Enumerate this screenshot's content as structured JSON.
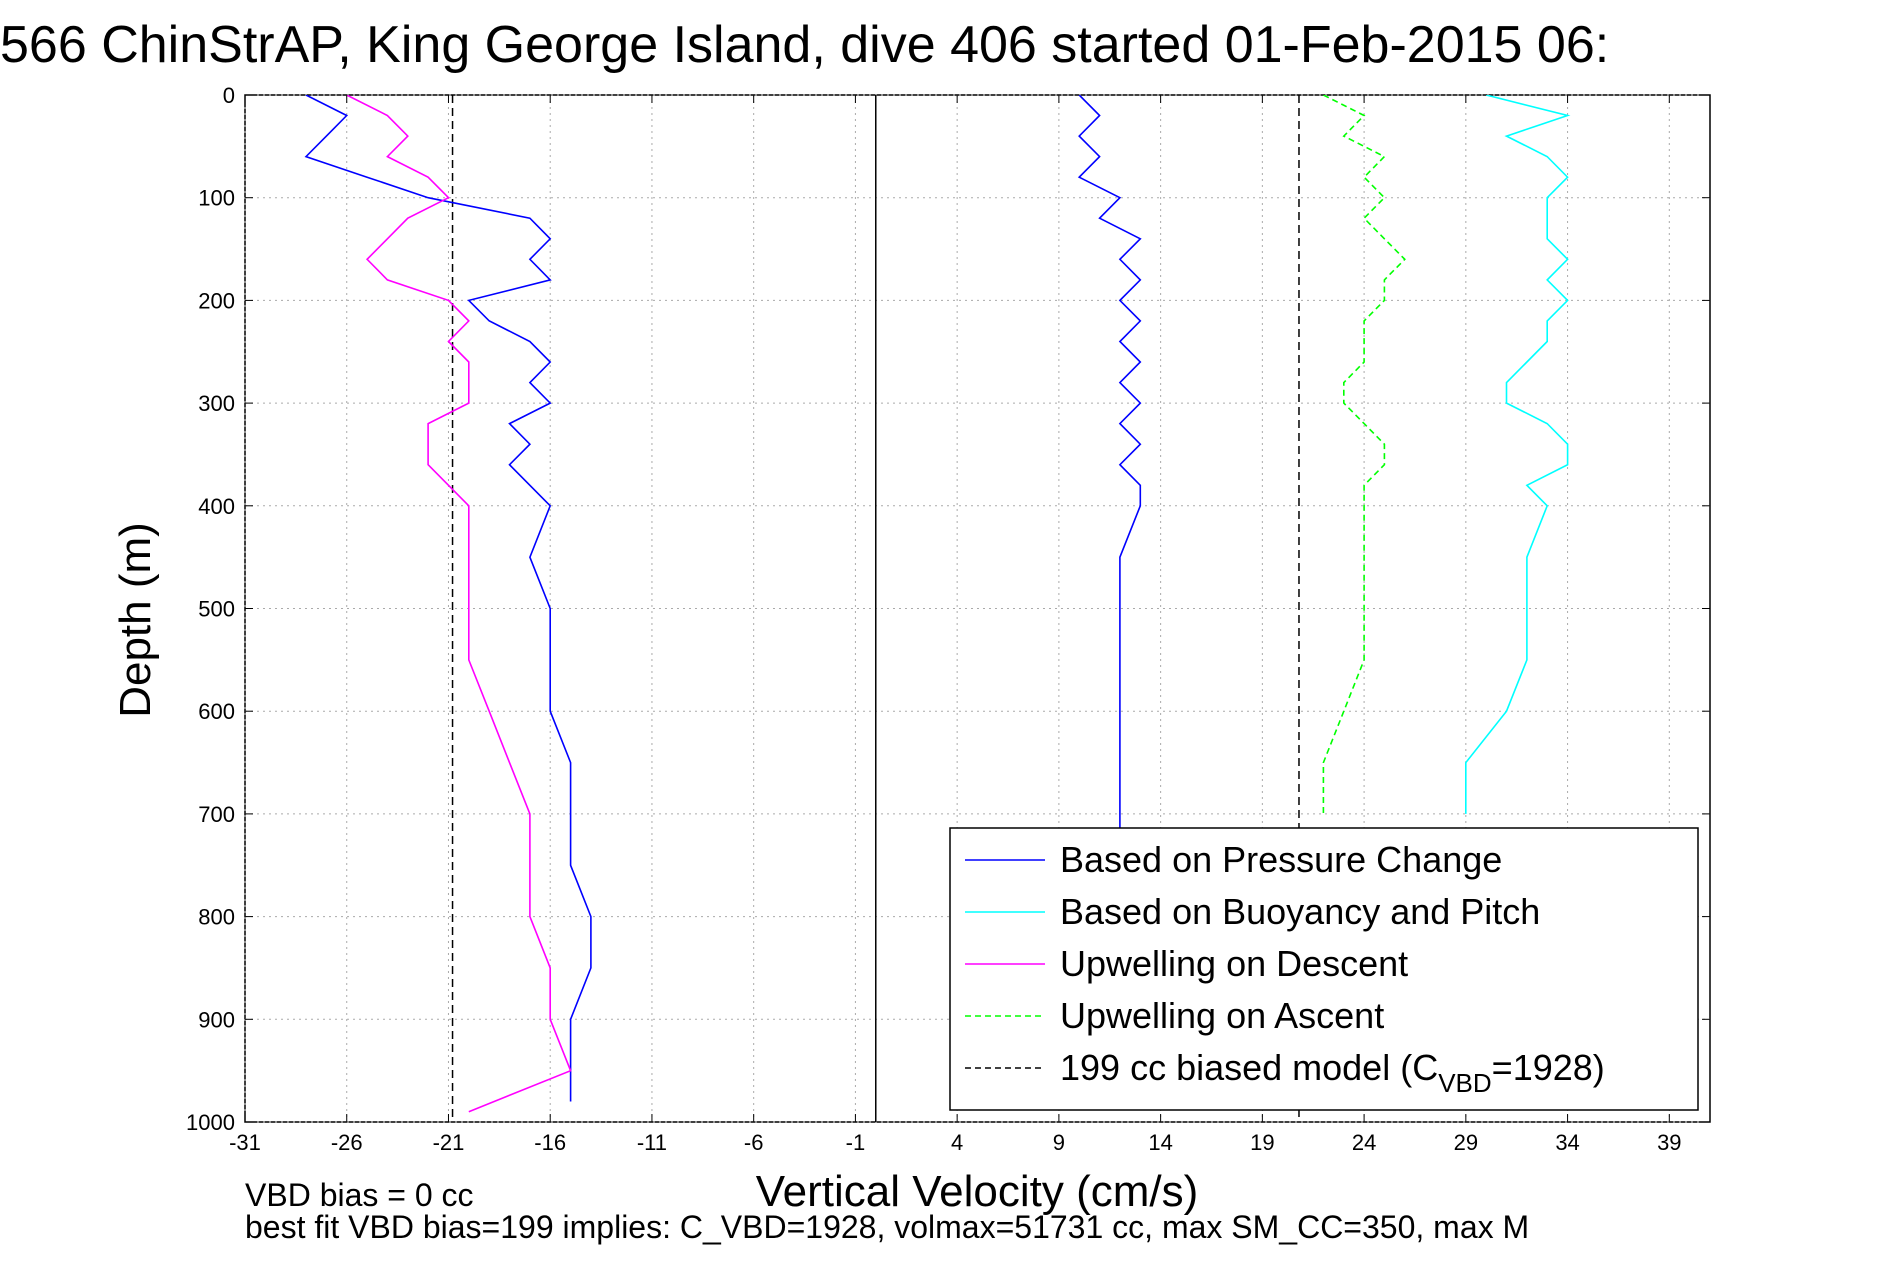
{
  "chart_data": {
    "type": "line",
    "title": "566 ChinStrAP, King George Island, dive 406 started 01-Feb-2015 06:",
    "xlabel": "Vertical Velocity (cm/s)",
    "ylabel": "Depth (m)",
    "xlim": [
      -31,
      41
    ],
    "ylim": [
      1000,
      0
    ],
    "y_inverted": true,
    "grid": true,
    "x_ticks": [
      -31,
      -26,
      -21,
      -16,
      -11,
      -6,
      -1,
      4,
      9,
      14,
      19,
      24,
      29,
      34,
      39
    ],
    "y_ticks": [
      0,
      100,
      200,
      300,
      400,
      500,
      600,
      700,
      800,
      900,
      1000
    ],
    "vertical_lines": [
      {
        "x": 0,
        "style": "solid",
        "color": "#000000"
      },
      {
        "x": -20.8,
        "style": "dashed",
        "color": "#000000"
      },
      {
        "x": 20.8,
        "style": "dashed",
        "color": "#000000"
      }
    ],
    "legend_position": "lower-right",
    "series": [
      {
        "name": "Based on Pressure Change",
        "color": "#0000ff",
        "style": "solid",
        "segments": [
          {
            "depth": [
              0,
              20,
              40,
              60,
              80,
              100,
              120,
              140,
              160,
              180,
              200,
              220,
              240,
              260,
              280,
              300,
              320,
              340,
              360,
              380,
              400,
              450,
              500,
              550,
              600,
              650,
              700,
              750,
              800,
              850,
              900,
              950,
              980
            ],
            "velocity": [
              -28,
              -26,
              -27,
              -28,
              -25,
              -22,
              -17,
              -16,
              -17,
              -16,
              -20,
              -19,
              -17,
              -16,
              -17,
              -16,
              -18,
              -17,
              -18,
              -17,
              -16,
              -17,
              -16,
              -16,
              -16,
              -15,
              -15,
              -15,
              -14,
              -14,
              -15,
              -15,
              -15
            ]
          },
          {
            "depth": [
              0,
              20,
              40,
              60,
              80,
              100,
              120,
              140,
              160,
              180,
              200,
              220,
              240,
              260,
              280,
              300,
              320,
              340,
              360,
              380,
              400,
              450,
              500,
              550,
              600,
              650,
              700,
              720
            ],
            "velocity": [
              10,
              11,
              10,
              11,
              10,
              12,
              11,
              13,
              12,
              13,
              12,
              13,
              12,
              13,
              12,
              13,
              12,
              13,
              12,
              13,
              13,
              12,
              12,
              12,
              12,
              12,
              12,
              12
            ]
          }
        ]
      },
      {
        "name": "Based on Buoyancy and Pitch",
        "color": "#00ffff",
        "style": "solid",
        "segments": [
          {
            "depth": [
              0,
              20,
              40,
              60,
              80,
              100,
              120,
              140,
              160,
              180,
              200,
              220,
              240,
              260,
              280,
              300,
              320,
              340,
              360,
              380,
              400,
              450,
              500,
              550,
              600,
              650,
              700
            ],
            "velocity": [
              30,
              34,
              31,
              33,
              34,
              33,
              33,
              33,
              34,
              33,
              34,
              33,
              33,
              32,
              31,
              31,
              33,
              34,
              34,
              32,
              33,
              32,
              32,
              32,
              31,
              29,
              29
            ]
          }
        ]
      },
      {
        "name": "Upwelling on Descent",
        "color": "#ff00ff",
        "style": "solid",
        "segments": [
          {
            "depth": [
              0,
              20,
              40,
              60,
              80,
              100,
              120,
              140,
              160,
              180,
              200,
              220,
              240,
              260,
              280,
              300,
              320,
              340,
              360,
              380,
              400,
              450,
              500,
              550,
              600,
              650,
              700,
              750,
              800,
              850,
              900,
              950,
              990
            ],
            "velocity": [
              -26,
              -24,
              -23,
              -24,
              -22,
              -21,
              -23,
              -24,
              -25,
              -24,
              -21,
              -20,
              -21,
              -20,
              -20,
              -20,
              -22,
              -22,
              -22,
              -21,
              -20,
              -20,
              -20,
              -20,
              -19,
              -18,
              -17,
              -17,
              -17,
              -16,
              -16,
              -15,
              -20
            ]
          }
        ]
      },
      {
        "name": "Upwelling on Ascent",
        "color": "#00ff00",
        "style": "dashed",
        "segments": [
          {
            "depth": [
              0,
              20,
              40,
              60,
              80,
              100,
              120,
              140,
              160,
              180,
              200,
              220,
              240,
              260,
              280,
              300,
              320,
              340,
              360,
              380,
              400,
              450,
              500,
              550,
              600,
              650,
              700
            ],
            "velocity": [
              22,
              24,
              23,
              25,
              24,
              25,
              24,
              25,
              26,
              25,
              25,
              24,
              24,
              24,
              23,
              23,
              24,
              25,
              25,
              24,
              24,
              24,
              24,
              24,
              23,
              22,
              22
            ]
          }
        ]
      },
      {
        "name": "199 cc biased model (C",
        "name_sub": "VBD",
        "name_suffix": "=1928)",
        "color": "#000000",
        "style": "dashed",
        "segments": []
      }
    ],
    "footer": [
      "VBD bias = 0 cc",
      "best fit VBD bias=199 implies: C_VBD=1928, volmax=51731 cc, max SM_CC=350, max M"
    ]
  }
}
